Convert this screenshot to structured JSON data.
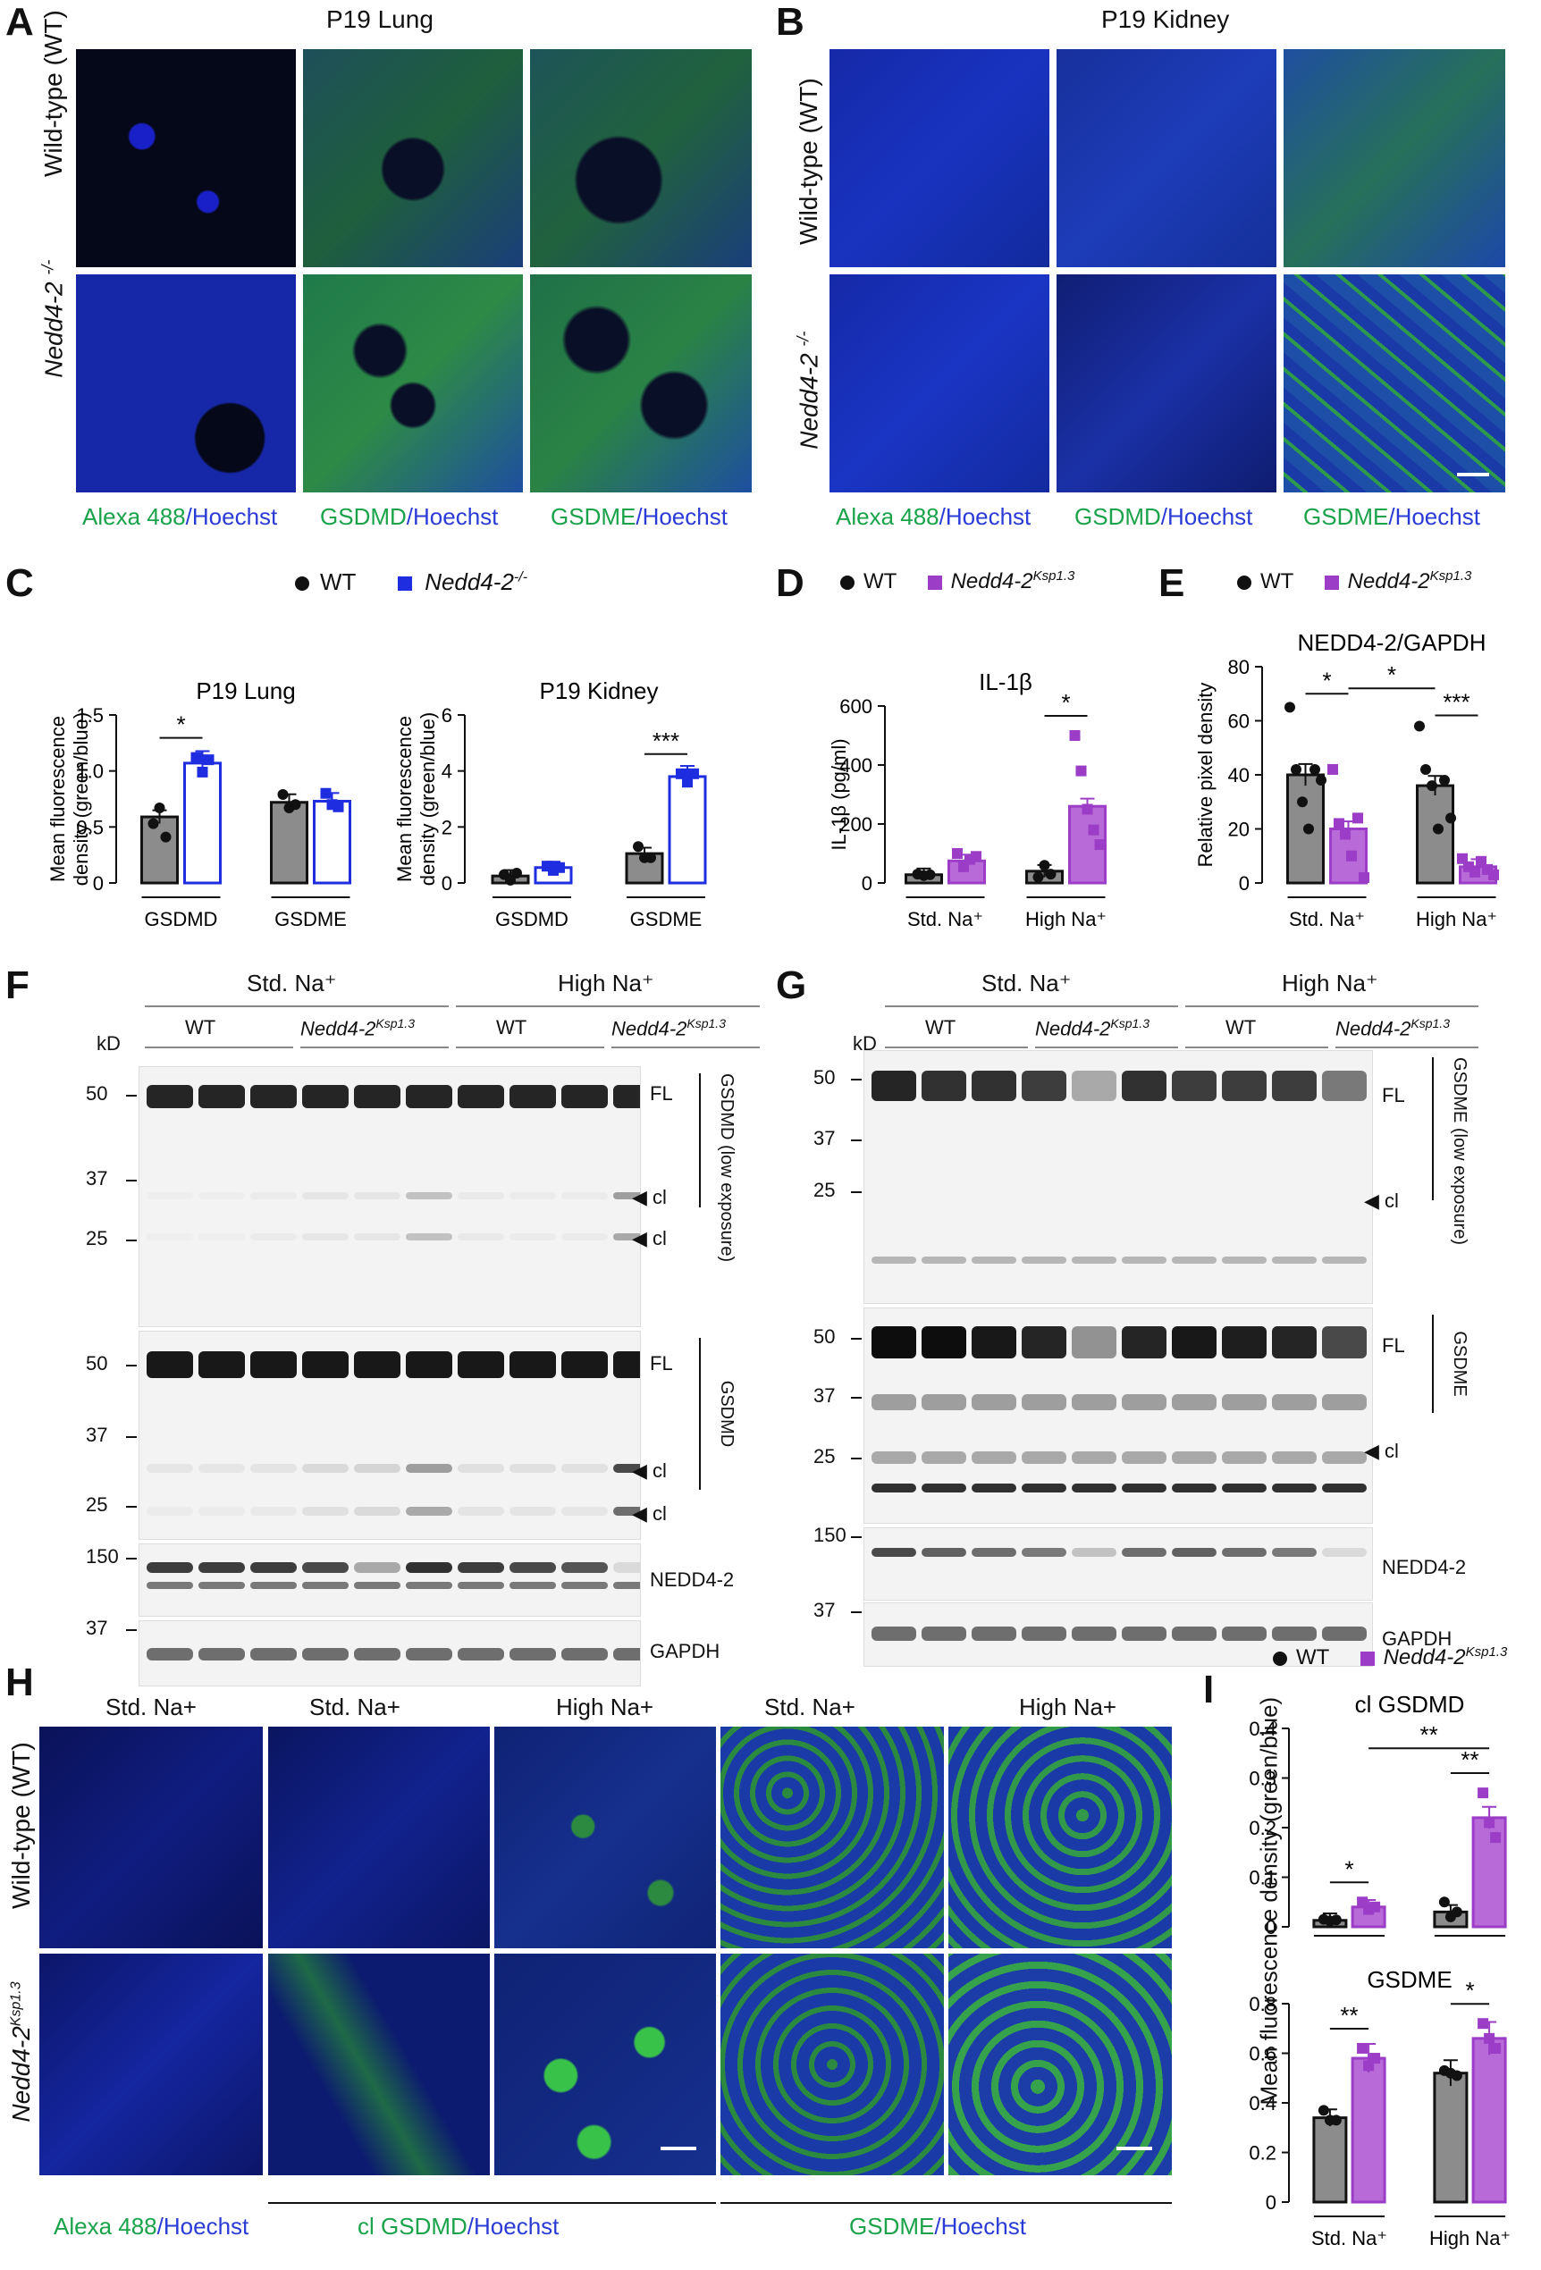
{
  "panels": {
    "A": {
      "label": "A",
      "title": "P19 Lung",
      "row_labels": [
        "Wild-type (WT)",
        "Nedd4-2 -/-"
      ],
      "col_labels": [
        [
          "Alexa 488",
          "/Hoechst"
        ],
        [
          "GSDMD",
          "/Hoechst"
        ],
        [
          "GSDME",
          "/Hoechst"
        ]
      ]
    },
    "B": {
      "label": "B",
      "title": "P19 Kidney",
      "row_labels": [
        "Wild-type (WT)",
        "Nedd4-2 -/-"
      ],
      "col_labels": [
        [
          "Alexa 488",
          "/Hoechst"
        ],
        [
          "GSDMD",
          "/Hoechst"
        ],
        [
          "GSDME",
          "/Hoechst"
        ]
      ]
    },
    "C": {
      "label": "C",
      "legend": [
        "WT",
        "Nedd4-2-/-"
      ]
    },
    "D": {
      "label": "D",
      "legend": [
        "WT",
        "Nedd4-2Ksp1.3"
      ]
    },
    "E": {
      "label": "E",
      "legend": [
        "WT",
        "Nedd4-2Ksp1.3"
      ]
    },
    "F": {
      "label": "F",
      "groups": [
        "Std. Na+",
        "High Na+"
      ],
      "subgroups": [
        "WT",
        "Nedd4-2Ksp1.3",
        "WT",
        "Nedd4-2Ksp1.3"
      ],
      "kd": "kD",
      "blots": [
        {
          "markers": [
            "50",
            "37",
            "25"
          ],
          "right": [
            "FL",
            "cl",
            "cl"
          ],
          "side": "GSDMD (low exposure)"
        },
        {
          "markers": [
            "50",
            "37",
            "25"
          ],
          "right": [
            "FL",
            "cl",
            "cl"
          ],
          "side": "GSDMD"
        },
        {
          "markers": [
            "150"
          ],
          "right": [
            "NEDD4-2"
          ],
          "side": ""
        },
        {
          "markers": [
            "37"
          ],
          "right": [
            "GAPDH"
          ],
          "side": ""
        }
      ]
    },
    "G": {
      "label": "G",
      "groups": [
        "Std. Na+",
        "High Na+"
      ],
      "subgroups": [
        "WT",
        "Nedd4-2Ksp1.3",
        "WT",
        "Nedd4-2Ksp1.3"
      ],
      "kd": "kD",
      "blots": [
        {
          "markers": [
            "50",
            "37",
            "25"
          ],
          "right": [
            "FL",
            "cl"
          ],
          "side": "GSDME (low exposure)"
        },
        {
          "markers": [
            "50",
            "37",
            "25"
          ],
          "right": [
            "FL",
            "cl"
          ],
          "side": "GSDME"
        },
        {
          "markers": [
            "150"
          ],
          "right": [
            "NEDD4-2"
          ],
          "side": ""
        },
        {
          "markers": [
            "37"
          ],
          "right": [
            "GAPDH"
          ],
          "side": ""
        }
      ]
    },
    "H": {
      "label": "H",
      "col_titles": [
        "Std. Na+",
        "Std. Na+",
        "High Na+",
        "Std. Na+",
        "High Na+"
      ],
      "row_labels": [
        "Wild-type (WT)",
        "Nedd4-2Ksp1.3"
      ],
      "bottom_labels": [
        [
          "Alexa 488",
          "/Hoechst"
        ],
        [
          "cl GSDMD",
          "/Hoechst"
        ],
        [
          "GSDME",
          "/Hoechst"
        ]
      ]
    },
    "I": {
      "label": "I",
      "legend": [
        "WT",
        "Nedd4-2Ksp1.3"
      ]
    }
  },
  "colors": {
    "wt": "#8c8c8c",
    "ko_blue": "#1f2de0",
    "ko_purple": "#9b3dc6",
    "green": "#1aa34a",
    "blue": "#2a3bd6"
  },
  "chart_data": [
    {
      "id": "C-lung",
      "type": "bar",
      "title": "P19 Lung",
      "ylabel": "Mean fluorescence density (green/blue)",
      "ylim": [
        0,
        1.5
      ],
      "yticks": [
        0,
        0.5,
        1.0,
        1.5
      ],
      "categories": [
        "GSDMD",
        "GSDME"
      ],
      "series": [
        {
          "name": "WT",
          "values": [
            0.59,
            0.72
          ]
        },
        {
          "name": "Nedd4-2-/-",
          "values": [
            1.07,
            0.73
          ]
        }
      ],
      "points": {
        "WT": [
          [
            0.53,
            0.67,
            0.41
          ],
          [
            0.79,
            0.67,
            0.7
          ]
        ],
        "Nedd4-2-/-": [
          [
            1.12,
            0.99,
            1.1
          ],
          [
            0.8,
            0.7,
            0.68
          ]
        ]
      },
      "significance": [
        {
          "between": "GSDMD WT vs KO",
          "label": "*"
        }
      ]
    },
    {
      "id": "C-kidney",
      "type": "bar",
      "title": "P19 Kidney",
      "ylabel": "Mean fluorescence density (green/blue)",
      "ylim": [
        0,
        6
      ],
      "yticks": [
        0,
        2,
        4,
        6
      ],
      "categories": [
        "GSDMD",
        "GSDME"
      ],
      "series": [
        {
          "name": "WT",
          "values": [
            0.25,
            1.05
          ]
        },
        {
          "name": "Nedd4-2-/-",
          "values": [
            0.55,
            3.8
          ]
        }
      ],
      "points": {
        "WT": [
          [
            0.3,
            0.1,
            0.35
          ],
          [
            1.3,
            0.9,
            0.9
          ]
        ],
        "Nedd4-2-/-": [
          [
            0.6,
            0.45,
            0.55
          ],
          [
            3.9,
            3.6,
            3.9
          ]
        ]
      },
      "significance": [
        {
          "between": "GSDME WT vs KO",
          "label": "***"
        }
      ]
    },
    {
      "id": "D",
      "type": "bar",
      "title": "IL-1β",
      "ylabel": "IL-1β (pg/ml)",
      "ylim": [
        0,
        600
      ],
      "yticks": [
        0,
        200,
        400,
        600
      ],
      "categories": [
        "Std. Na+",
        "High Na+"
      ],
      "series": [
        {
          "name": "WT",
          "values": [
            28,
            40
          ]
        },
        {
          "name": "Nedd4-2Ksp1.3",
          "values": [
            75,
            260
          ]
        }
      ],
      "points": {
        "WT": [
          [
            30,
            25,
            28
          ],
          [
            20,
            60,
            30
          ]
        ],
        "Nedd4-2Ksp1.3": [
          [
            100,
            55,
            80,
            90
          ],
          [
            500,
            380,
            250,
            180,
            130
          ]
        ]
      },
      "significance": [
        {
          "between": "High Na+ WT vs KO",
          "label": "*"
        }
      ]
    },
    {
      "id": "E",
      "type": "bar",
      "title": "NEDD4-2/GAPDH",
      "ylabel": "Relative pixel density",
      "ylim": [
        0,
        80
      ],
      "yticks": [
        0,
        20,
        40,
        60,
        80
      ],
      "categories": [
        "Std. Na+",
        "High Na+"
      ],
      "series": [
        {
          "name": "WT",
          "values": [
            40,
            36
          ]
        },
        {
          "name": "Nedd4-2Ksp1.3",
          "values": [
            20,
            6
          ]
        }
      ],
      "points": {
        "WT": [
          [
            65,
            42,
            30,
            20,
            42,
            38
          ],
          [
            58,
            42,
            36,
            20,
            38,
            24
          ]
        ],
        "Nedd4-2Ksp1.3": [
          [
            42,
            22,
            18,
            10,
            24,
            2
          ],
          [
            9,
            6,
            4,
            8,
            5,
            3
          ]
        ]
      },
      "significance": [
        {
          "between": "Std WT vs KO",
          "label": "*"
        },
        {
          "between": "Std KO vs High WT",
          "label": "*"
        },
        {
          "between": "High WT vs KO",
          "label": "***"
        }
      ]
    },
    {
      "id": "I-cl-GSDMD",
      "type": "bar",
      "title": "cl GSDMD",
      "ylabel": "Mean fluorescence density (green/blue)",
      "ylim": [
        0,
        0.4
      ],
      "yticks": [
        0,
        0.1,
        0.2,
        0.3,
        0.4
      ],
      "categories": [
        "Std. Na+",
        "High Na+"
      ],
      "series": [
        {
          "name": "WT",
          "values": [
            0.013,
            0.03
          ]
        },
        {
          "name": "Nedd4-2Ksp1.3",
          "values": [
            0.04,
            0.22
          ]
        }
      ],
      "points": {
        "WT": [
          [
            0.015,
            0.012,
            0.014
          ],
          [
            0.05,
            0.02,
            0.03
          ]
        ],
        "Nedd4-2Ksp1.3": [
          [
            0.05,
            0.035,
            0.04
          ],
          [
            0.27,
            0.21,
            0.18
          ]
        ]
      },
      "significance": [
        {
          "between": "Std WT vs KO",
          "label": "*"
        },
        {
          "between": "Std KO vs High KO",
          "label": "**"
        },
        {
          "between": "High WT vs KO",
          "label": "**"
        }
      ]
    },
    {
      "id": "I-GSDME",
      "type": "bar",
      "title": "GSDME",
      "ylabel": "Mean fluorescence density (green/blue)",
      "ylim": [
        0,
        0.8
      ],
      "yticks": [
        0,
        0.2,
        0.4,
        0.6,
        0.8
      ],
      "categories": [
        "Std. Na+",
        "High Na+"
      ],
      "series": [
        {
          "name": "WT",
          "values": [
            0.34,
            0.52
          ]
        },
        {
          "name": "Nedd4-2Ksp1.3",
          "values": [
            0.58,
            0.66
          ]
        }
      ],
      "points": {
        "WT": [
          [
            0.37,
            0.33,
            0.33
          ],
          [
            0.53,
            0.52,
            0.51
          ]
        ],
        "Nedd4-2Ksp1.3": [
          [
            0.62,
            0.55,
            0.58
          ],
          [
            0.72,
            0.66,
            0.62
          ]
        ]
      },
      "significance": [
        {
          "between": "Std WT vs KO",
          "label": "**"
        },
        {
          "between": "High WT vs KO",
          "label": "*"
        }
      ]
    }
  ]
}
